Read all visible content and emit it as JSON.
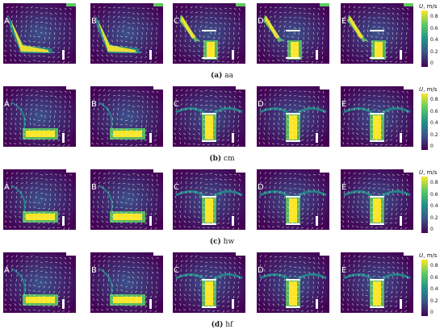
{
  "panel_labels": [
    "A",
    "B",
    "C",
    "D",
    "E"
  ],
  "rows": [
    {
      "caption_letter": "(a)",
      "caption_text": " aa",
      "pattern": "jet"
    },
    {
      "caption_letter": "(b)",
      "caption_text": " cm",
      "pattern": "box"
    },
    {
      "caption_letter": "(c)",
      "caption_text": " hw",
      "pattern": "box"
    },
    {
      "caption_letter": "(d)",
      "caption_text": " hf",
      "pattern": "box"
    }
  ],
  "colorbar": {
    "variable": "U",
    "unit": ", m/s",
    "ticks": [
      "0.8",
      "0.6",
      "0.4",
      "0.2",
      "0"
    ],
    "colors": [
      "#fde725",
      "#5ec962",
      "#21918c",
      "#3b528b",
      "#440154"
    ]
  }
}
